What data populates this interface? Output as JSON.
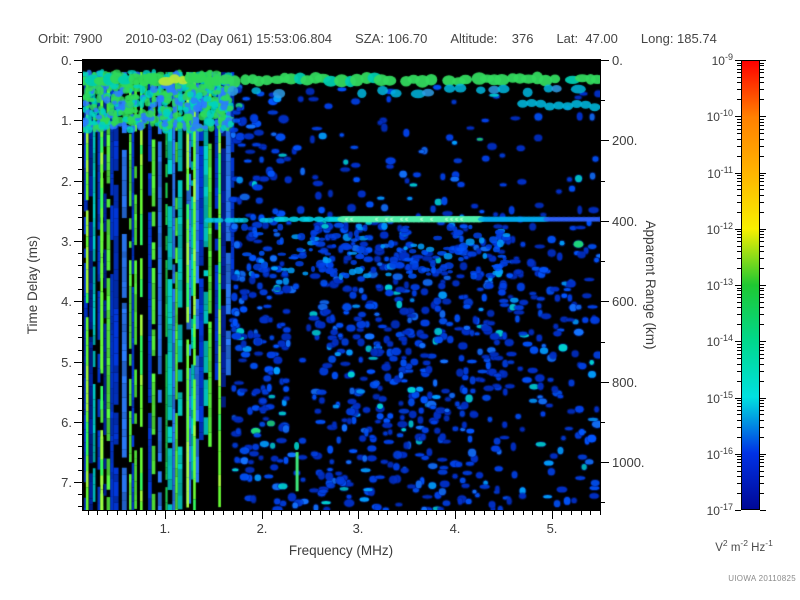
{
  "header": {
    "segments": [
      "Orbit: 7900",
      "2010-03-02 (Day 061) 15:53:06.804",
      "SZA: 106.70",
      "Altitude:    376",
      "Lat:  47.00",
      "Long: 185.74"
    ]
  },
  "axes": {
    "x": {
      "label": "Frequency (MHz)",
      "min": 0.15,
      "max": 5.5,
      "major_ticks": [
        1,
        2,
        3,
        4,
        5
      ],
      "major_labels": [
        "1.",
        "2.",
        "3.",
        "4.",
        "5."
      ],
      "minor_step": 0.1
    },
    "y_left": {
      "label": "Time Delay (ms)",
      "min": 0,
      "max": 7.46,
      "major_ticks": [
        0,
        1,
        2,
        3,
        4,
        5,
        6,
        7
      ],
      "major_labels": [
        "0.",
        "1.",
        "2.",
        "3.",
        "4.",
        "5.",
        "6.",
        "7."
      ],
      "minor_step": 0.2
    },
    "y_right": {
      "label": "Apparent Range (km)",
      "min": 0,
      "max": 1119,
      "major_ticks": [
        0,
        200,
        400,
        600,
        800,
        1000
      ],
      "major_labels": [
        "0.",
        "200.",
        "400.",
        "600.",
        "800.",
        "1000."
      ],
      "minor_step": 100
    }
  },
  "colorbar": {
    "exponents": [
      -9,
      -10,
      -11,
      -12,
      -13,
      -14,
      -15,
      -16,
      -17
    ],
    "mantissa": "10",
    "unit_segments": [
      [
        "V",
        "2"
      ],
      [
        "m",
        "-2"
      ],
      [
        "Hz",
        "-1"
      ]
    ],
    "stops": [
      "#fe0000",
      "#ff8000",
      "#ffb400",
      "#f8f000",
      "#1fc832",
      "#00d88c",
      "#00e0e0",
      "#0032e6",
      "#000896"
    ]
  },
  "credit": "UIOWA 20110825",
  "chart_data": {
    "type": "heatmap",
    "title": "Orbit: 7900  2010-03-02 (Day 061) 15:53:06.804  SZA: 106.70  Altitude: 376  Lat: 47.00  Long: 185.74",
    "xlabel": "Frequency (MHz)",
    "ylabel_left": "Time Delay (ms)",
    "ylabel_right": "Apparent Range (km)",
    "x_range_mhz": [
      0.15,
      5.5
    ],
    "y_range_ms": [
      0,
      7.46
    ],
    "right_range_km": [
      0,
      1119
    ],
    "color_scale": {
      "type": "log",
      "min": 1e-17,
      "max": 1e-09,
      "units": "V^2 m^-2 Hz^-1",
      "palette": "rainbow (red=1e-9 ... navy=1e-17)"
    },
    "background_value": "below 1e-17 (black)",
    "features": [
      {
        "name": "top_blank_band",
        "delay_ms": [
          0,
          0.2
        ],
        "freq_mhz": [
          0.15,
          5.5
        ],
        "value": "no data (black)"
      },
      {
        "name": "ionospheric_echo_band",
        "delay_ms": [
          0.2,
          0.45
        ],
        "freq_mhz": [
          0.15,
          5.5
        ],
        "intensity": "~1e-13 (green, quasi-continuous)"
      },
      {
        "name": "secondary_echo_blobs",
        "delay_ms": [
          0.45,
          0.85
        ],
        "freq_mhz": [
          2.0,
          5.5
        ],
        "cluster_freq_mhz": [
          4.7,
          5.5
        ],
        "intensity": "~1e-15 (cyan, patchy)"
      },
      {
        "name": "plasma_oscillation_stripes",
        "delay_ms": [
          0.2,
          7.46
        ],
        "freq_mhz": [
          0.15,
          1.68
        ],
        "bright_lines_mhz": [
          0.18,
          0.33,
          0.74,
          1.22,
          1.29,
          1.55
        ],
        "intensity": "1e-12 .. 1e-16 (vertical green/cyan/blue stripes)"
      },
      {
        "name": "surface_reflection_line",
        "delay_ms": [
          2.58,
          2.7
        ],
        "apparent_range_km": 400,
        "freq_mhz": [
          1.35,
          5.5
        ],
        "brightest_mhz": [
          2.8,
          4.25
        ],
        "intensity": "~1e-14 (cyan-green horizontal line)"
      },
      {
        "name": "noise_speckle",
        "delay_ms": [
          0.5,
          7.46
        ],
        "freq_mhz": [
          1.7,
          5.5
        ],
        "intensity": "~1e-16 (blue blobs)",
        "density": "decreasing toward high frequency and long delay"
      },
      {
        "name": "quiet_column",
        "freq_mhz": [
          2.28,
          2.52
        ],
        "delay_ms": [
          0.8,
          6.4
        ],
        "value": "near-black, sparse"
      },
      {
        "name": "bottom_green_stripe",
        "freq_mhz": [
          2.35,
          2.4
        ],
        "delay_ms": [
          6.5,
          7.15
        ],
        "intensity": "~1e-13"
      }
    ]
  }
}
